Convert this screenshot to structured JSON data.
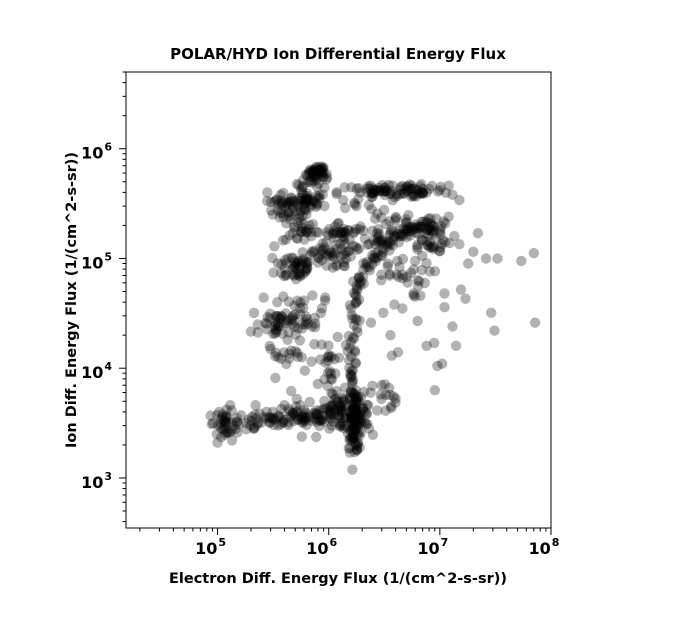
{
  "chart_data": {
    "type": "scatter",
    "title": "POLAR/HYD  Ion Differential Energy Flux",
    "xlabel": "Electron Diff. Energy Flux (1/(cm^2-s-sr))",
    "ylabel": "Ion Diff. Energy Flux (1/(cm^2-s-sr))",
    "x_scale": "log",
    "y_scale": "log",
    "xlim": [
      15000,
      100000000
    ],
    "ylim": [
      350,
      5000000
    ],
    "x_ticks": [
      {
        "value": 100000,
        "base": "10",
        "exp": "5"
      },
      {
        "value": 1000000,
        "base": "10",
        "exp": "6"
      },
      {
        "value": 10000000,
        "base": "10",
        "exp": "7"
      },
      {
        "value": 100000000,
        "base": "10",
        "exp": "8"
      }
    ],
    "y_ticks": [
      {
        "value": 1000,
        "base": "10",
        "exp": "3"
      },
      {
        "value": 10000,
        "base": "10",
        "exp": "4"
      },
      {
        "value": 100000,
        "base": "10",
        "exp": "5"
      },
      {
        "value": 1000000,
        "base": "10",
        "exp": "6"
      }
    ],
    "grid": false,
    "marker_color": "#000000",
    "marker_opacity": 0.3,
    "points": [
      {
        "x": 54000000.0,
        "y": 95000.0
      },
      {
        "x": 70000000.0,
        "y": 112000.0
      },
      {
        "x": 72000000.0,
        "y": 26000.0
      },
      {
        "x": 31000000.0,
        "y": 22000.0
      },
      {
        "x": 29000000.0,
        "y": 32000.0
      },
      {
        "x": 26000000.0,
        "y": 100000.0
      },
      {
        "x": 33000000.0,
        "y": 100000.0
      },
      {
        "x": 18000000.0,
        "y": 90000.0
      },
      {
        "x": 20000000.0,
        "y": 115000.0
      },
      {
        "x": 17000000.0,
        "y": 43000.0
      },
      {
        "x": 14000000.0,
        "y": 16000.0
      },
      {
        "x": 10500000.0,
        "y": 11000.0
      },
      {
        "x": 9000000.0,
        "y": 6300.0
      },
      {
        "x": 7600000.0,
        "y": 16000.0
      },
      {
        "x": 13000000.0,
        "y": 24000.0
      },
      {
        "x": 11000000.0,
        "y": 36000.0
      },
      {
        "x": 11000000.0,
        "y": 48000.0
      },
      {
        "x": 8900000.0,
        "y": 17000.0
      },
      {
        "x": 4200000.0,
        "y": 14000.0
      },
      {
        "x": 3700000.0,
        "y": 13000.0
      },
      {
        "x": 3600000.0,
        "y": 20000.0
      },
      {
        "x": 2400000.0,
        "y": 26000.0
      },
      {
        "x": 3100000.0,
        "y": 32000.0
      },
      {
        "x": 3900000.0,
        "y": 38000.0
      },
      {
        "x": 9500000.0,
        "y": 10500.0
      },
      {
        "x": 6300000.0,
        "y": 27000.0
      },
      {
        "x": 15500000.0,
        "y": 52000.0
      },
      {
        "x": 22000000.0,
        "y": 170000.0
      },
      {
        "x": 15000000.0,
        "y": 135000.0
      },
      {
        "x": 12000000.0,
        "y": 240000.0
      },
      {
        "x": 13500000.0,
        "y": 160000.0
      },
      {
        "x": 10200000.0,
        "y": 450000.0
      },
      {
        "x": 8000000.0,
        "y": 430000.0
      },
      {
        "x": 13000000.0,
        "y": 380000.0
      },
      {
        "x": 12000000.0,
        "y": 460000.0
      },
      {
        "x": 15000000.0,
        "y": 340000.0
      },
      {
        "x": 5400000.0,
        "y": 430000.0
      },
      {
        "x": 3300000.0,
        "y": 410000.0
      },
      {
        "x": 2600000.0,
        "y": 420000.0
      },
      {
        "x": 1350000.0,
        "y": 340000.0
      },
      {
        "x": 1850000.0,
        "y": 350000.0
      },
      {
        "x": 6000000.0,
        "y": 95000.0
      },
      {
        "x": 6500000.0,
        "y": 62000.0
      },
      {
        "x": 5800000.0,
        "y": 48000.0
      },
      {
        "x": 4600000.0,
        "y": 35000.0
      },
      {
        "x": 4000000.0,
        "y": 5300.0
      },
      {
        "x": 3500000.0,
        "y": 6600.0
      },
      {
        "x": 3000000.0,
        "y": 7000.0
      },
      {
        "x": 930000.0,
        "y": 44000.0
      },
      {
        "x": 840000.0,
        "y": 12000.0
      },
      {
        "x": 700000.0,
        "y": 11500.0
      },
      {
        "x": 460000.0,
        "y": 6200.0
      },
      {
        "x": 610000.0,
        "y": 9500.0
      },
      {
        "x": 800000.0,
        "y": 7200.0
      },
      {
        "x": 400000.0,
        "y": 4600.0
      },
      {
        "x": 220000.0,
        "y": 4600.0
      },
      {
        "x": 130000.0,
        "y": 4600.0
      },
      {
        "x": 100000.0,
        "y": 2100.0
      },
      {
        "x": 135000.0,
        "y": 2200.0
      },
      {
        "x": 1900000.0,
        "y": 1900.0
      },
      {
        "x": 1550000.0,
        "y": 1700.0
      },
      {
        "x": 260000.0,
        "y": 44000.0
      },
      {
        "x": 390000.0,
        "y": 45000.0
      },
      {
        "x": 230000.0,
        "y": 25000.0
      },
      {
        "x": 300000.0,
        "y": 15000.0
      },
      {
        "x": 370000.0,
        "y": 380000.0
      },
      {
        "x": 280000.0,
        "y": 400000.0
      },
      {
        "x": 460000.0,
        "y": 360000.0
      }
    ],
    "clusters": [
      {
        "x": 800000.0,
        "y": 620000.0,
        "sx": 0.04,
        "sy": 0.03,
        "n": 25
      },
      {
        "x": 650000.0,
        "y": 480000.0,
        "sx": 0.05,
        "sy": 0.04,
        "n": 12
      },
      {
        "x": 450000.0,
        "y": 280000.0,
        "sx": 0.1,
        "sy": 0.06,
        "n": 40
      },
      {
        "x": 650000.0,
        "y": 320000.0,
        "sx": 0.07,
        "sy": 0.05,
        "n": 20
      },
      {
        "x": 550000.0,
        "y": 180000.0,
        "sx": 0.08,
        "sy": 0.06,
        "n": 25
      },
      {
        "x": 500000.0,
        "y": 85000.0,
        "sx": 0.09,
        "sy": 0.07,
        "n": 45
      },
      {
        "x": 850000.0,
        "y": 110000.0,
        "sx": 0.12,
        "sy": 0.06,
        "n": 25
      },
      {
        "x": 350000.0,
        "y": 25000.0,
        "sx": 0.12,
        "sy": 0.09,
        "n": 40
      },
      {
        "x": 580000.0,
        "y": 30000.0,
        "sx": 0.1,
        "sy": 0.08,
        "n": 30
      },
      {
        "x": 420000.0,
        "y": 13000.0,
        "sx": 0.1,
        "sy": 0.06,
        "n": 15
      },
      {
        "x": 115000.0,
        "y": 3200.0,
        "sx": 0.07,
        "sy": 0.05,
        "n": 35
      },
      {
        "x": 250000.0,
        "y": 3200.0,
        "sx": 0.16,
        "sy": 0.05,
        "n": 40
      },
      {
        "x": 600000.0,
        "y": 3600.0,
        "sx": 0.15,
        "sy": 0.05,
        "n": 55
      },
      {
        "x": 1300000.0,
        "y": 4000.0,
        "sx": 0.1,
        "sy": 0.09,
        "n": 80
      },
      {
        "x": 1700000.0,
        "y": 3000.0,
        "sx": 0.03,
        "sy": 0.1,
        "n": 40
      },
      {
        "x": 1900000.0,
        "y": 3500.0,
        "sx": 0.05,
        "sy": 0.09,
        "n": 30
      },
      {
        "x": 1000000.0,
        "y": 11000.0,
        "sx": 0.04,
        "sy": 0.12,
        "n": 20
      },
      {
        "x": 2800000.0,
        "y": 400000.0,
        "sx": 0.18,
        "sy": 0.04,
        "n": 45
      },
      {
        "x": 6000000.0,
        "y": 420000.0,
        "sx": 0.13,
        "sy": 0.04,
        "n": 35
      },
      {
        "x": 1250000.0,
        "y": 170000.0,
        "sx": 0.1,
        "sy": 0.05,
        "n": 30
      },
      {
        "x": 2800000.0,
        "y": 160000.0,
        "sx": 0.12,
        "sy": 0.06,
        "n": 35
      },
      {
        "x": 8000000.0,
        "y": 150000.0,
        "sx": 0.1,
        "sy": 0.08,
        "n": 35
      },
      {
        "x": 4000000.0,
        "y": 70000.0,
        "sx": 0.15,
        "sy": 0.1,
        "n": 30
      },
      {
        "x": 1200000.0,
        "y": 105000.0,
        "sx": 0.08,
        "sy": 0.06,
        "n": 20
      },
      {
        "x": 2800000.0,
        "y": 5500.0,
        "sx": 0.08,
        "sy": 0.08,
        "n": 15
      }
    ],
    "paths": [
      {
        "points": [
          [
            700000.0,
            560000.0
          ],
          [
            730000.0,
            630000.0
          ],
          [
            820000.0,
            660000.0
          ],
          [
            920000.0,
            600000.0
          ],
          [
            900000.0,
            460000.0
          ],
          [
            800000.0,
            370000.0
          ],
          [
            680000.0,
            320000.0
          ],
          [
            550000.0,
            320000.0
          ],
          [
            400000.0,
            320000.0
          ],
          [
            310000.0,
            350000.0
          ]
        ],
        "n": 40,
        "spread": 0.02
      },
      {
        "points": [
          [
            1780000.0,
            1800.0
          ],
          [
            1760000.0,
            2500.0
          ],
          [
            1730000.0,
            3500.0
          ],
          [
            1680000.0,
            5000.0
          ],
          [
            1640000.0,
            7500.0
          ],
          [
            1620000.0,
            12000.0
          ],
          [
            1630000.0,
            20000.0
          ],
          [
            1700000.0,
            35000.0
          ],
          [
            1820000.0,
            55000.0
          ],
          [
            2050000.0,
            75000.0
          ],
          [
            2500000.0,
            100000.0
          ],
          [
            3200000.0,
            130000.0
          ],
          [
            4200000.0,
            160000.0
          ],
          [
            5200000.0,
            185000.0
          ],
          [
            6500000.0,
            200000.0
          ],
          [
            8500000.0,
            190000.0
          ]
        ],
        "n": 150,
        "spread": 0.025
      },
      {
        "points": [
          [
            1500000.0,
            300000.0
          ],
          [
            2400000.0,
            260000.0
          ],
          [
            3600000.0,
            230000.0
          ],
          [
            5500000.0,
            220000.0
          ],
          [
            8000000.0,
            200000.0
          ],
          [
            12000000.0,
            210000.0
          ]
        ],
        "n": 30,
        "spread": 0.04
      }
    ]
  }
}
